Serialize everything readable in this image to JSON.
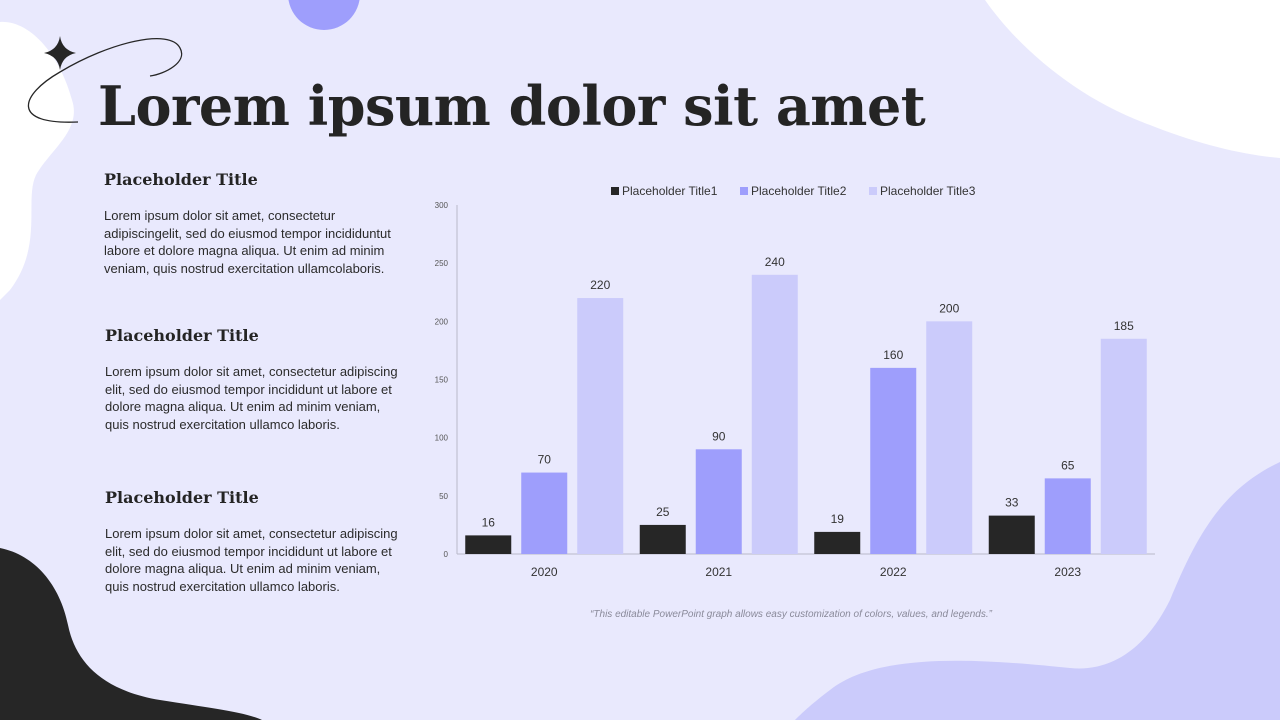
{
  "slide": {
    "title": "Lorem ipsum dolor sit amet",
    "blocks": [
      {
        "heading": "Placeholder Title",
        "body": "Lorem ipsum dolor sit amet, consectetur adipiscingelit, sed do eiusmod tempor incididuntut labore et dolore magna aliqua. Ut enim ad minim veniam, quis nostrud exercitation ullamcolaboris."
      },
      {
        "heading": "Placeholder Title",
        "body": "Lorem ipsum dolor sit amet, consectetur adipiscing elit, sed do eiusmod tempor incididunt ut labore et dolore magna aliqua. Ut enim ad minim veniam, quis nostrud exercitation ullamco laboris."
      },
      {
        "heading": "Placeholder Title",
        "body": "Lorem ipsum dolor sit amet, consectetur adipiscing elit, sed do eiusmod tempor incididunt ut labore et dolore magna aliqua. Ut enim ad minim veniam, quis nostrud exercitation ullamco laboris."
      }
    ],
    "caption": "“This editable PowerPoint graph allows easy customization of colors, values, and legends.”"
  },
  "colors": {
    "background": "#e9e9fd",
    "accent_light": "#cbcbfb",
    "accent_mid": "#9e9efc",
    "dark": "#262626"
  },
  "chart_data": {
    "type": "bar",
    "categories": [
      "2020",
      "2021",
      "2022",
      "2023"
    ],
    "series": [
      {
        "name": "Placeholder Title1",
        "values": [
          16,
          25,
          19,
          33
        ],
        "color": "#262626"
      },
      {
        "name": "Placeholder Title2",
        "values": [
          70,
          90,
          160,
          65
        ],
        "color": "#9e9efc"
      },
      {
        "name": "Placeholder Title3",
        "values": [
          220,
          240,
          200,
          185
        ],
        "color": "#cbcbfb"
      }
    ],
    "ylim": [
      0,
      300
    ],
    "yticks": [
      0,
      50,
      100,
      150,
      200,
      250,
      300
    ],
    "grid": false,
    "legend": "top",
    "data_labels": true
  }
}
